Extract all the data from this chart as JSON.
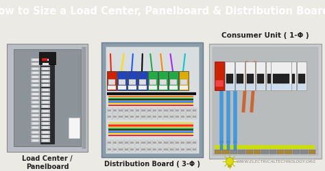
{
  "title": "How to Size a Load Center, Panelboard & Distribution Board?",
  "title_color": "#FFFFFF",
  "title_bg_color": "#111111",
  "title_fontsize": 10.5,
  "title_fontweight": "bold",
  "bg_color": "#ECEAE5",
  "label1": "Load Center /\nPanelboard",
  "label2": "Distribution Board ( 3-Φ )",
  "label3": "Consumer Unit ( 1-Φ )",
  "watermark": "WWW.ELECTRICALTECHNOLOGY.ORG",
  "label_fontsize": 7.0,
  "label_fontweight": "bold"
}
